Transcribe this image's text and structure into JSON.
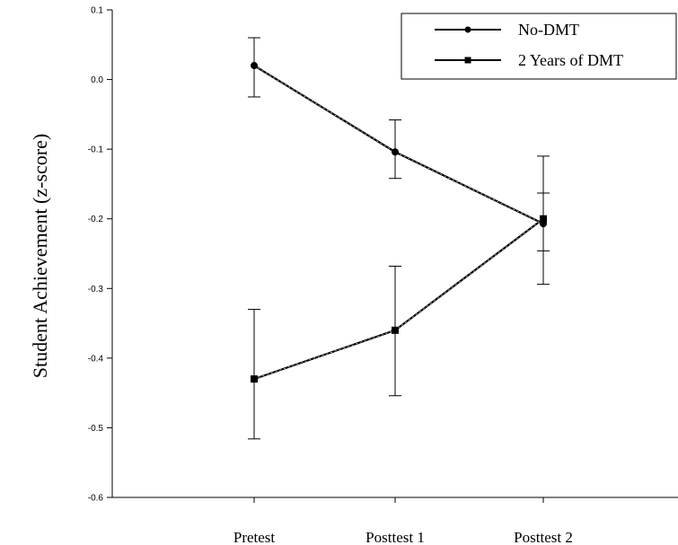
{
  "chart_data": {
    "type": "line",
    "title": "",
    "xlabel": "",
    "ylabel": "Student Achievement (z-score)",
    "categories": [
      "Pretest",
      "Posttest 1",
      "Posttest 2"
    ],
    "ylim": [
      -0.6,
      0.1
    ],
    "yticks": [
      "0.1",
      "0.0",
      "-0.1",
      "-0.2",
      "-0.3",
      "-0.4",
      "-0.5",
      "-0.6"
    ],
    "legend_position": "top-right",
    "grid": false,
    "series": [
      {
        "name": "No-DMT",
        "marker": "circle",
        "values": [
          0.02,
          -0.104,
          -0.207
        ],
        "err_low": [
          -0.025,
          -0.142,
          -0.294
        ],
        "err_high": [
          0.06,
          -0.058,
          -0.11
        ]
      },
      {
        "name": "2 Years of DMT",
        "marker": "square",
        "values": [
          -0.43,
          -0.36,
          -0.2
        ],
        "err_low": [
          -0.516,
          -0.454,
          -0.246
        ],
        "err_high": [
          -0.33,
          -0.268,
          -0.163
        ]
      }
    ]
  }
}
